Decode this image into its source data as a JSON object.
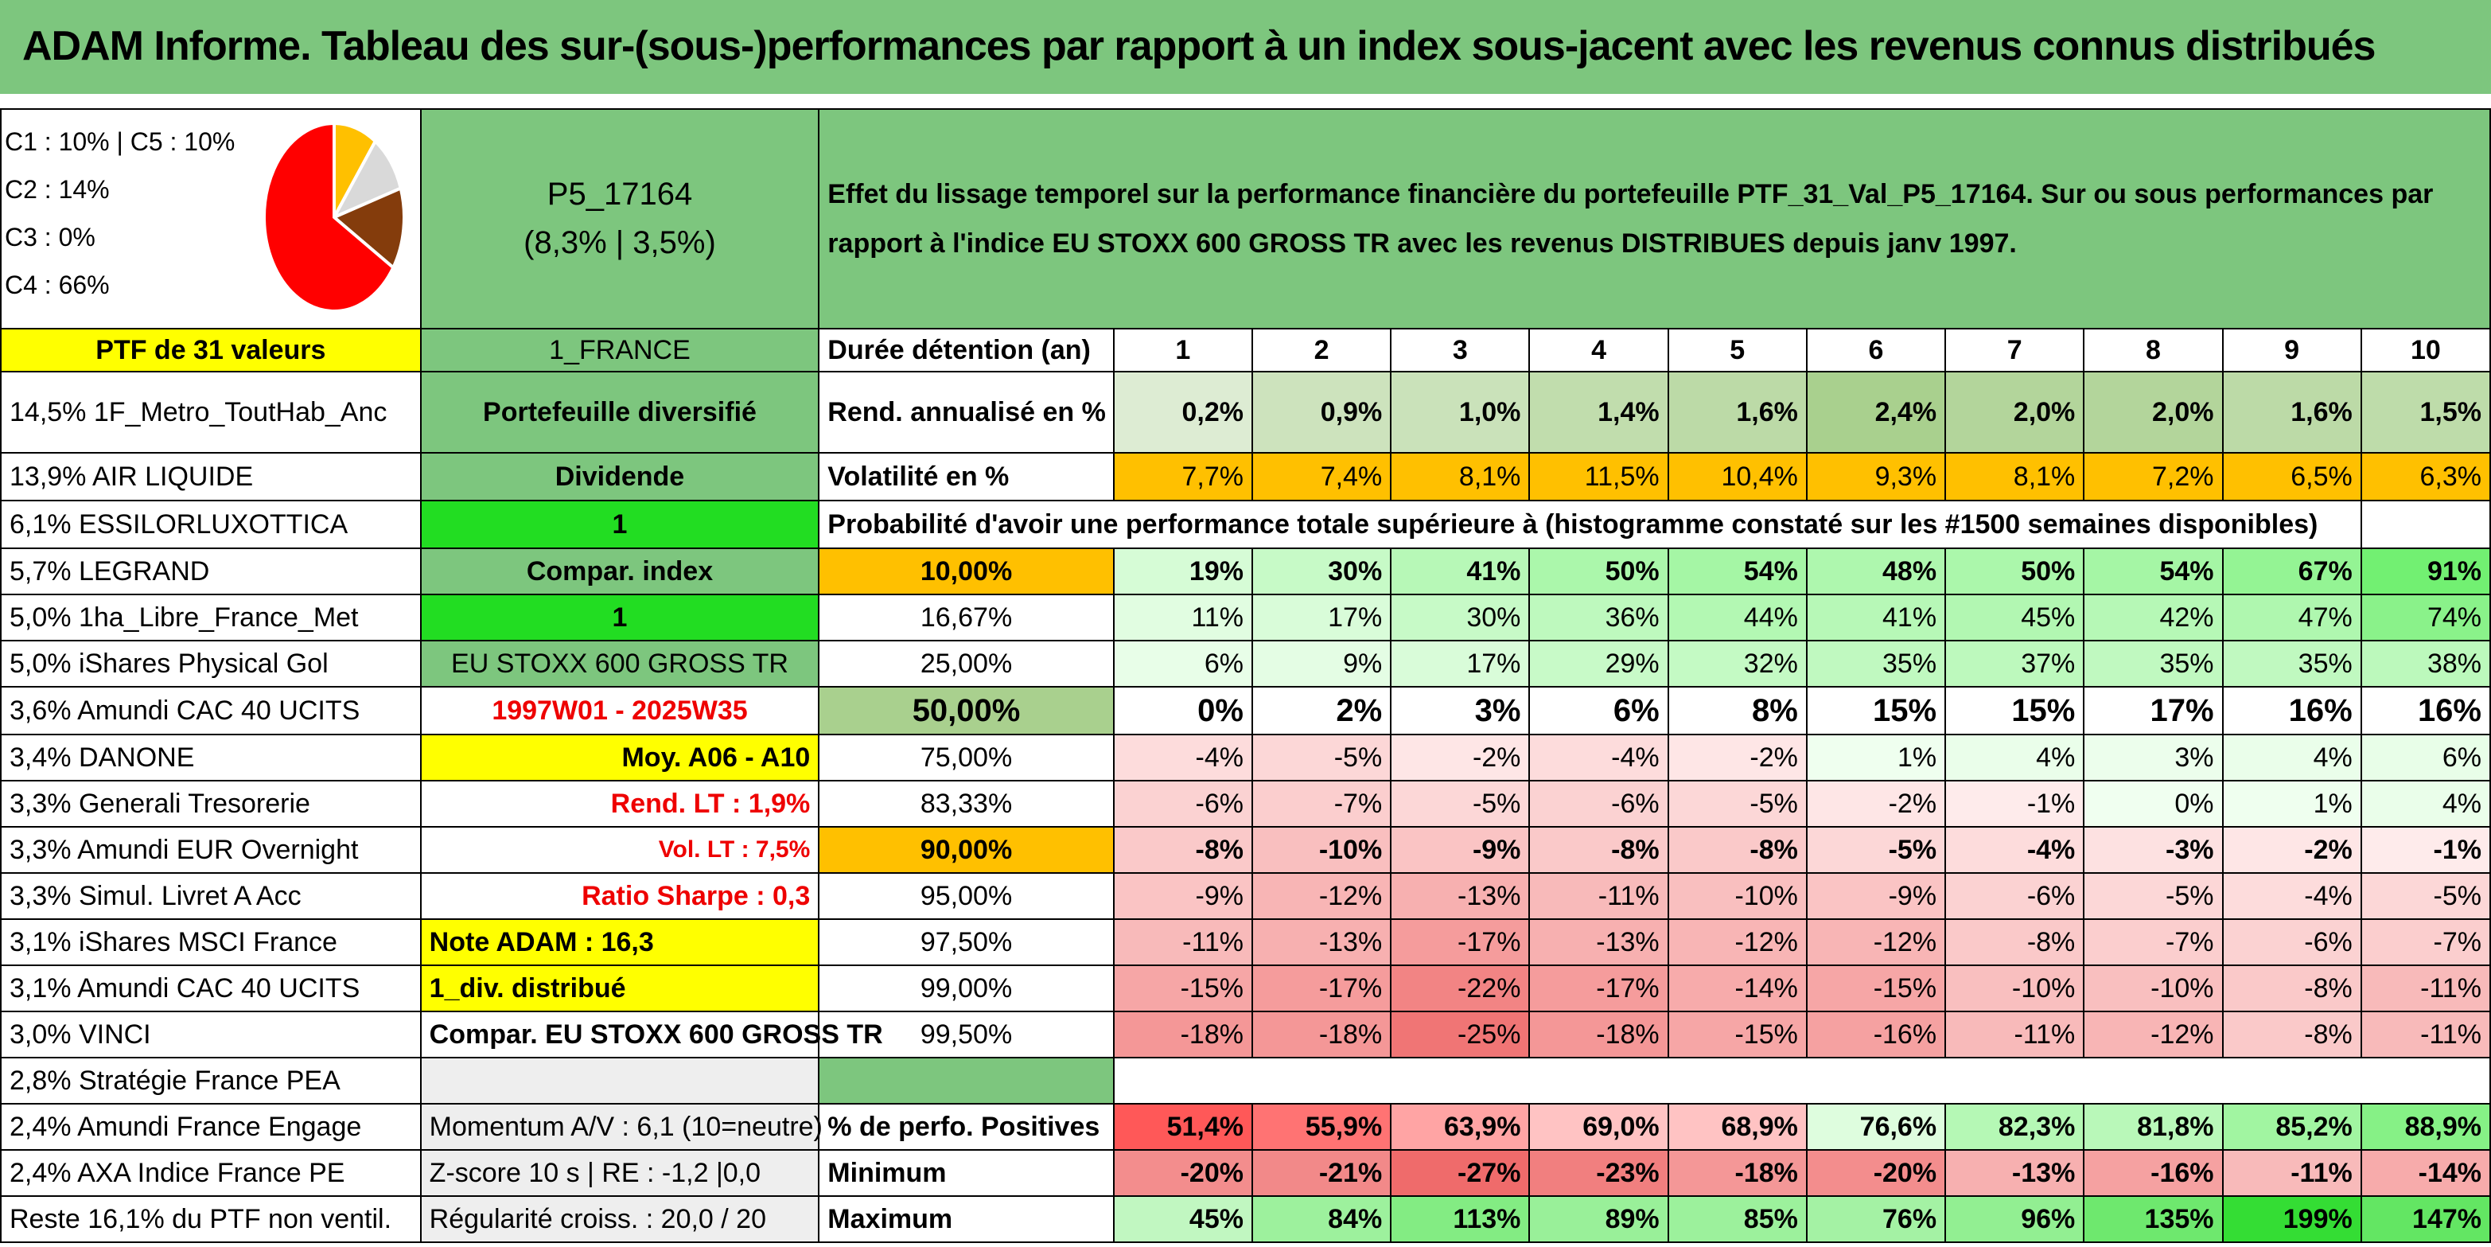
{
  "title": "ADAM Informe. Tableau des sur-(sous-)performances par rapport à un index sous-jacent avec les revenus connus distribués",
  "legend": [
    "C1 : 10% | C5 : 10%",
    "C2 : 14%",
    "C3 : 0%",
    "C4 : 66%"
  ],
  "pie_colors": {
    "C1": "#ffc000",
    "C2": "#843c0c",
    "C3": "#a5a5a5",
    "C4": "#ff0000",
    "C5": "#d9d9d9"
  },
  "portfolio": {
    "code": "P5_17164",
    "perf": "(8,3% | 3,5%)"
  },
  "description": "Effet du lissage temporel sur la performance financière du portefeuille PTF_31_Val_P5_17164. Sur ou sous performances par rapport à l'indice EU STOXX 600 GROSS TR avec les revenus DISTRIBUES depuis janv 1997.",
  "ptf_label": "PTF de 31 valeurs",
  "holdings": [
    "14,5% 1F_Metro_ToutHab_Anc",
    "13,9% AIR LIQUIDE",
    "6,1% ESSILORLUXOTTICA",
    "5,7% LEGRAND",
    "5,0% 1ha_Libre_France_Met",
    "5,0% iShares Physical Gol",
    "3,6% Amundi CAC 40 UCITS",
    "3,4% DANONE",
    "3,3% Generali Tresorerie",
    "3,3% Amundi EUR Overnight",
    "3,3% Simul. Livret A Acc",
    "3,1% iShares MSCI France",
    "3,1% Amundi CAC 40 UCITS",
    "3,0% VINCI",
    "2,8% Stratégie France PEA",
    "2,4% Amundi France Engage",
    "2,4% AXA Indice France PE",
    "Reste 16,1% du PTF non ventil."
  ],
  "info": [
    "1_FRANCE",
    "Portefeuille diversifié",
    "Dividende",
    "1",
    "Compar. index",
    "1",
    "EU STOXX 600 GROSS TR",
    "1997W01 - 2025W35",
    "Moy. A06 - A10",
    "Rend. LT : 1,9%",
    "Vol. LT : 7,5%",
    "Ratio Sharpe : 0,3",
    "Note ADAM : 16,3",
    "1_div. distribué",
    "Compar. EU STOXX 600 GROSS TR",
    "",
    "Momentum A/V : 6,1 (10=neutre)",
    "Z-score 10 s | RE : -1,2 |0,0",
    "Régularité croiss. : 20,0 / 20"
  ],
  "duration_label": "Durée détention (an)",
  "years": [
    "1",
    "2",
    "3",
    "4",
    "5",
    "6",
    "7",
    "8",
    "9",
    "10"
  ],
  "rend_label": "Rend. annualisé en %",
  "rend": [
    "0,2%",
    "0,9%",
    "1,0%",
    "1,4%",
    "1,6%",
    "2,4%",
    "2,0%",
    "2,0%",
    "1,6%",
    "1,5%"
  ],
  "vol_label": "Volatilité en %",
  "vol": [
    "7,7%",
    "7,4%",
    "8,1%",
    "11,5%",
    "10,4%",
    "9,3%",
    "8,1%",
    "7,2%",
    "6,5%",
    "6,3%"
  ],
  "prob_label": "Probabilité d'avoir une performance totale supérieure à (histogramme constaté sur les #1500 semaines disponibles)",
  "prob_rows": [
    {
      "p": "10,00%",
      "v": [
        "19%",
        "30%",
        "41%",
        "50%",
        "54%",
        "48%",
        "50%",
        "54%",
        "67%",
        "91%"
      ]
    },
    {
      "p": "16,67%",
      "v": [
        "11%",
        "17%",
        "30%",
        "36%",
        "44%",
        "41%",
        "45%",
        "42%",
        "47%",
        "74%"
      ]
    },
    {
      "p": "25,00%",
      "v": [
        "6%",
        "9%",
        "17%",
        "29%",
        "32%",
        "35%",
        "37%",
        "35%",
        "35%",
        "38%"
      ]
    },
    {
      "p": "50,00%",
      "v": [
        "0%",
        "2%",
        "3%",
        "6%",
        "8%",
        "15%",
        "15%",
        "17%",
        "16%",
        "16%"
      ]
    },
    {
      "p": "75,00%",
      "v": [
        "-4%",
        "-5%",
        "-2%",
        "-4%",
        "-2%",
        "1%",
        "4%",
        "3%",
        "4%",
        "6%"
      ]
    },
    {
      "p": "83,33%",
      "v": [
        "-6%",
        "-7%",
        "-5%",
        "-6%",
        "-5%",
        "-2%",
        "-1%",
        "0%",
        "1%",
        "4%"
      ]
    },
    {
      "p": "90,00%",
      "v": [
        "-8%",
        "-10%",
        "-9%",
        "-8%",
        "-8%",
        "-5%",
        "-4%",
        "-3%",
        "-2%",
        "-1%"
      ]
    },
    {
      "p": "95,00%",
      "v": [
        "-9%",
        "-12%",
        "-13%",
        "-11%",
        "-10%",
        "-9%",
        "-6%",
        "-5%",
        "-4%",
        "-5%"
      ]
    },
    {
      "p": "97,50%",
      "v": [
        "-11%",
        "-13%",
        "-17%",
        "-13%",
        "-12%",
        "-12%",
        "-8%",
        "-7%",
        "-6%",
        "-7%"
      ]
    },
    {
      "p": "99,00%",
      "v": [
        "-15%",
        "-17%",
        "-22%",
        "-17%",
        "-14%",
        "-15%",
        "-10%",
        "-10%",
        "-8%",
        "-11%"
      ]
    },
    {
      "p": "99,50%",
      "v": [
        "-18%",
        "-18%",
        "-25%",
        "-18%",
        "-15%",
        "-16%",
        "-11%",
        "-12%",
        "-8%",
        "-11%"
      ]
    }
  ],
  "pos_label": "% de perfo. Positives",
  "pos": [
    "51,4%",
    "55,9%",
    "63,9%",
    "69,0%",
    "68,9%",
    "76,6%",
    "82,3%",
    "81,8%",
    "85,2%",
    "88,9%"
  ],
  "min_label": "Minimum",
  "min": [
    "-20%",
    "-21%",
    "-27%",
    "-23%",
    "-18%",
    "-20%",
    "-13%",
    "-16%",
    "-11%",
    "-14%"
  ],
  "max_label": "Maximum",
  "max": [
    "45%",
    "84%",
    "113%",
    "89%",
    "85%",
    "76%",
    "96%",
    "135%",
    "199%",
    "147%"
  ]
}
